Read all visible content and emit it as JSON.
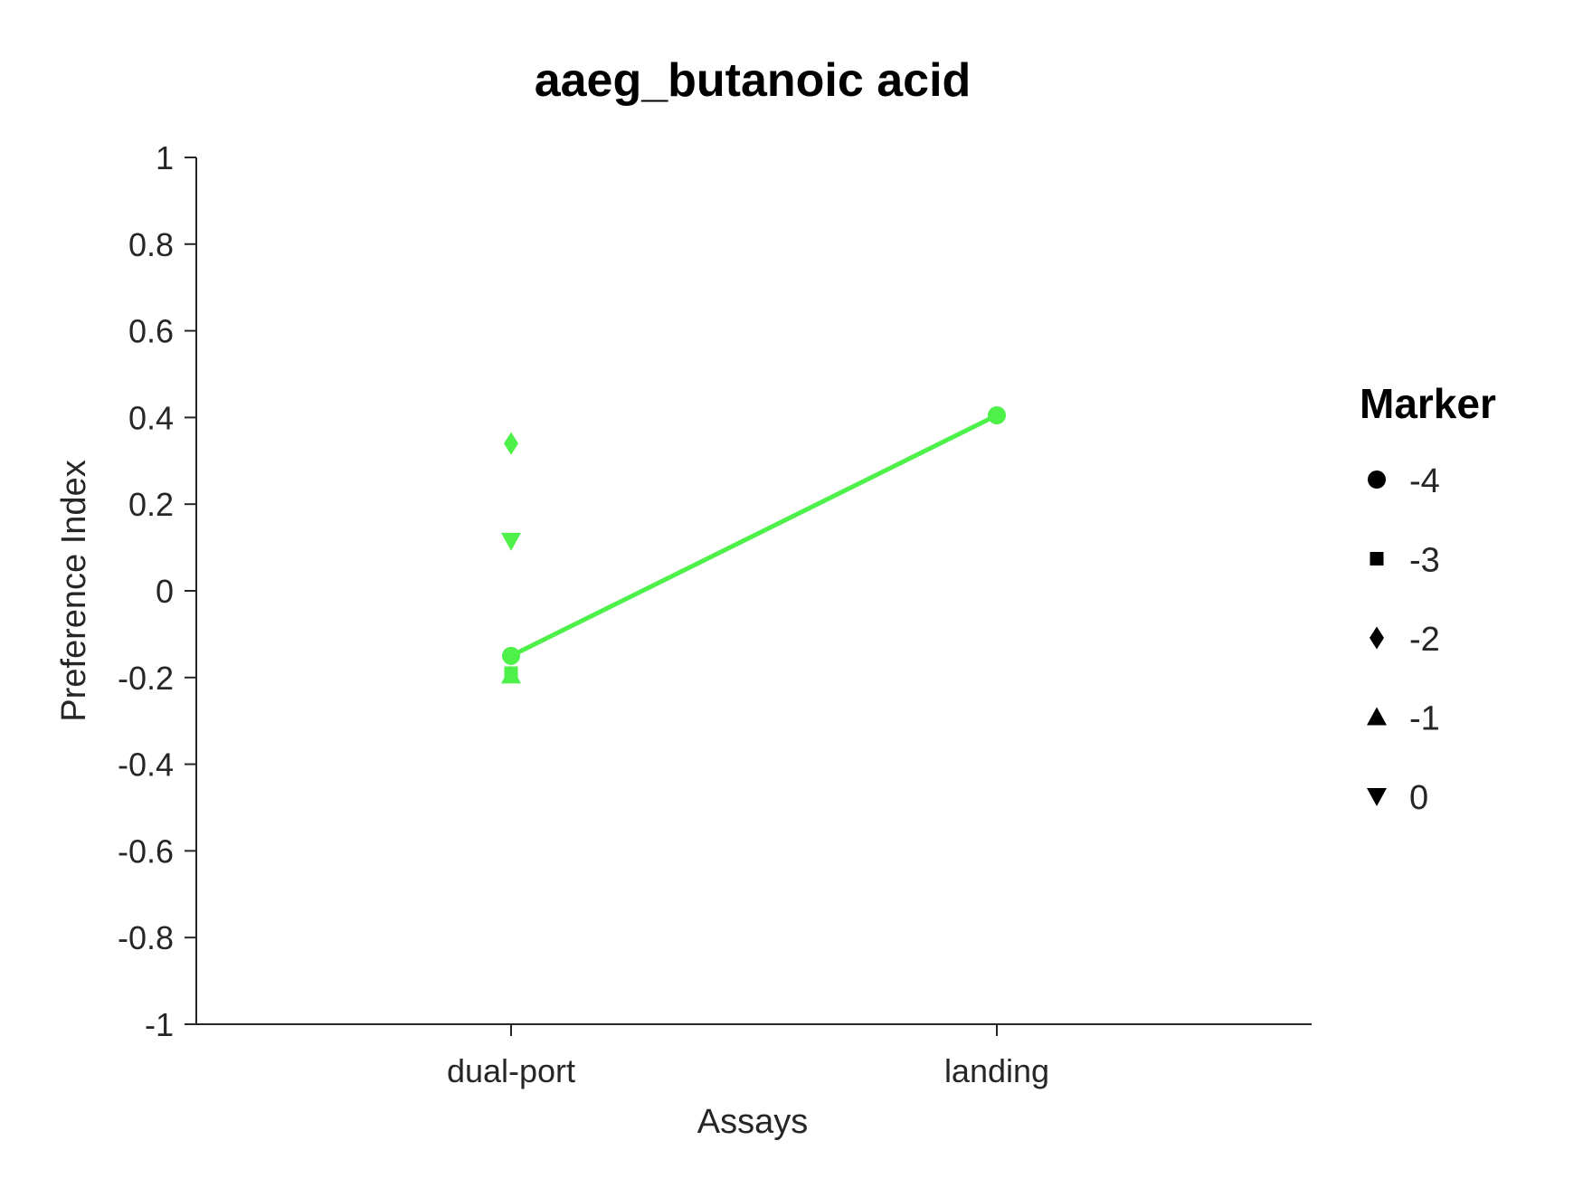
{
  "chart_data": {
    "type": "scatter",
    "title": "aaeg_butanoic acid",
    "xlabel": "Assays",
    "ylabel": "Preference Index",
    "categories": [
      "dual-port",
      "landing"
    ],
    "ylim": [
      -1,
      1
    ],
    "yticks": [
      "1",
      "0.8",
      "0.6",
      "0.4",
      "0.2",
      "0",
      "-0.2",
      "-0.4",
      "-0.6",
      "-0.8",
      "-1"
    ],
    "grid": false,
    "color": "#4ef04a",
    "points": [
      {
        "x": "dual-port",
        "y": 0.34,
        "marker": "diamond"
      },
      {
        "x": "dual-port",
        "y": 0.115,
        "marker": "triangle-down"
      },
      {
        "x": "dual-port",
        "y": -0.15,
        "marker": "circle"
      },
      {
        "x": "dual-port",
        "y": -0.195,
        "marker": "triangle-up"
      },
      {
        "x": "dual-port",
        "y": -0.19,
        "marker": "square"
      },
      {
        "x": "landing",
        "y": 0.405,
        "marker": "circle"
      }
    ],
    "line": {
      "marker": "circle",
      "points": [
        {
          "x": "dual-port",
          "y": -0.15
        },
        {
          "x": "landing",
          "y": 0.405
        }
      ]
    },
    "legend": {
      "title": "Marker",
      "placement": "right",
      "entries": [
        {
          "label": "-4",
          "marker": "circle"
        },
        {
          "label": "-3",
          "marker": "square"
        },
        {
          "label": "-2",
          "marker": "diamond"
        },
        {
          "label": "-1",
          "marker": "triangle-up"
        },
        {
          "label": "0",
          "marker": "triangle-down"
        }
      ]
    }
  }
}
